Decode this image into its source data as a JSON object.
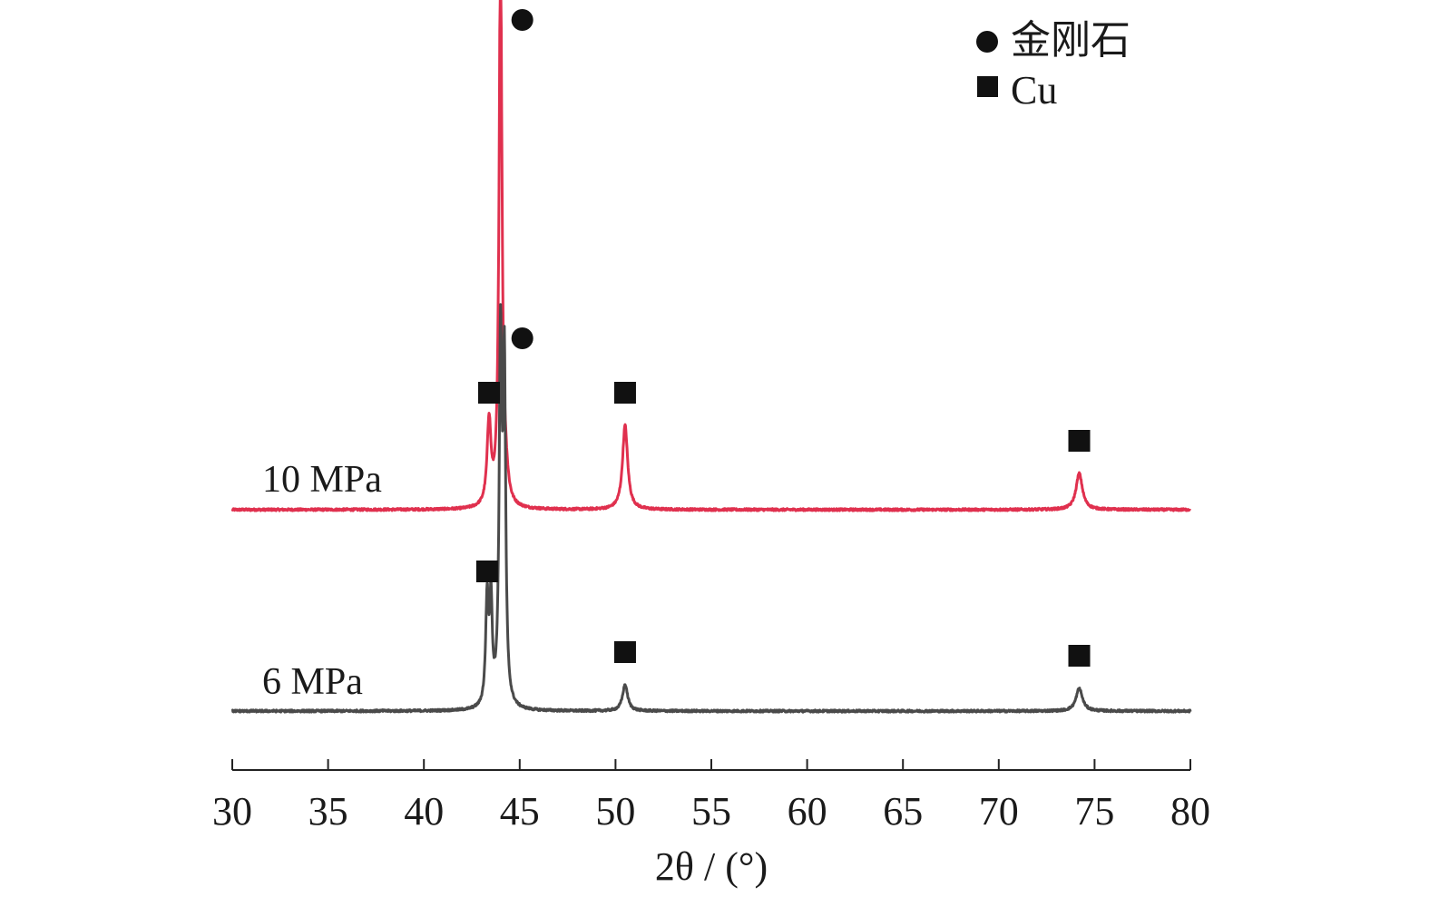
{
  "chart_data": {
    "type": "line",
    "xlabel": "2θ / (°)",
    "ylabel": "",
    "xlim": [
      30,
      80
    ],
    "xticks": [
      30,
      35,
      40,
      45,
      50,
      55,
      60,
      65,
      70,
      75,
      80
    ],
    "tick_labels": [
      "30",
      "35",
      "40",
      "45",
      "50",
      "55",
      "60",
      "65",
      "70",
      "75",
      "80"
    ],
    "y_axis_visible": false,
    "grid": false,
    "legend": {
      "placement": "top-right",
      "entries": [
        {
          "label": "金刚石",
          "marker": "circle"
        },
        {
          "label": "Cu",
          "marker": "square"
        }
      ]
    },
    "series": [
      {
        "name": "10 MPa",
        "color": "#e0304e",
        "baseline": 0,
        "peaks": [
          {
            "x": 43.4,
            "height": 93,
            "width": 0.12,
            "marker": "square"
          },
          {
            "x": 44.0,
            "height": 620,
            "width": 0.09,
            "marker": "circle"
          },
          {
            "x": 44.25,
            "height": 28,
            "width": 0.15
          },
          {
            "x": 50.5,
            "height": 93,
            "width": 0.16,
            "marker": "square"
          },
          {
            "x": 74.2,
            "height": 40,
            "width": 0.2,
            "marker": "square"
          }
        ]
      },
      {
        "name": "6 MPa",
        "color": "#4a4a4a",
        "baseline": 0,
        "peaks": [
          {
            "x": 43.3,
            "height": 118,
            "width": 0.09,
            "marker": "square"
          },
          {
            "x": 43.5,
            "height": 110,
            "width": 0.08
          },
          {
            "x": 44.0,
            "height": 395,
            "width": 0.085,
            "marker": "circle"
          },
          {
            "x": 44.2,
            "height": 360,
            "width": 0.08
          },
          {
            "x": 50.5,
            "height": 29,
            "width": 0.16,
            "marker": "square"
          },
          {
            "x": 74.2,
            "height": 25,
            "width": 0.2,
            "marker": "square"
          }
        ]
      }
    ]
  }
}
